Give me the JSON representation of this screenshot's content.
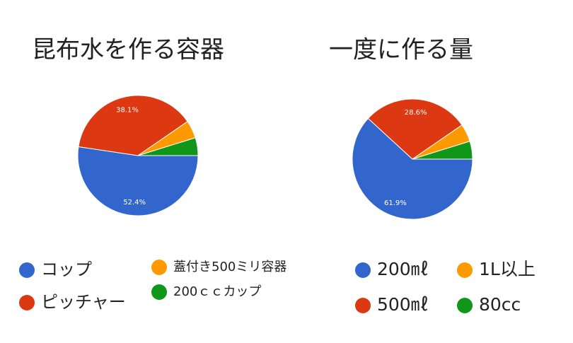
{
  "chart_data": [
    {
      "type": "pie",
      "title": "昆布水を作る容器",
      "categories": [
        "コップ",
        "ピッチャー",
        "蓋付き500ミリ容器",
        "200ｃｃカップ"
      ],
      "values": [
        52.4,
        38.1,
        4.8,
        4.8
      ],
      "value_labels": [
        "52.4%",
        "38.1%",
        null,
        null
      ],
      "colors": [
        "#3366cc",
        "#dc3912",
        "#ff9900",
        "#109618"
      ]
    },
    {
      "type": "pie",
      "title": "一度に作る量",
      "categories": [
        "200㎖",
        "500㎖",
        "1L以上",
        "80cc"
      ],
      "values": [
        61.9,
        28.6,
        4.8,
        4.8
      ],
      "value_labels": [
        "61.9%",
        "28.6%",
        null,
        null
      ],
      "colors": [
        "#3366cc",
        "#dc3912",
        "#ff9900",
        "#109618"
      ]
    }
  ]
}
